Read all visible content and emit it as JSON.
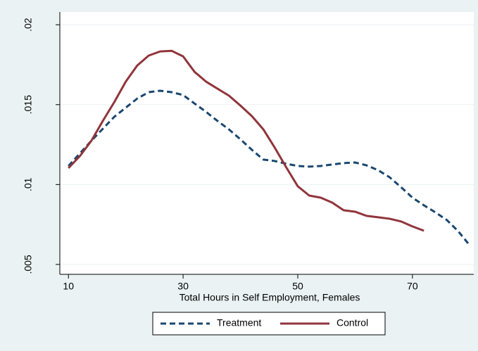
{
  "chart_data": {
    "type": "line",
    "x_label": "Total Hours in Self Employment, Females",
    "xlim": [
      8.5,
      80.7
    ],
    "xticks": [
      10,
      30,
      50,
      70
    ],
    "ylim": [
      0.00438,
      0.0208
    ],
    "yticks": [
      {
        "value": 0.005,
        "label": ".005"
      },
      {
        "value": 0.01,
        "label": ".01"
      },
      {
        "value": 0.015,
        "label": ".015"
      },
      {
        "value": 0.02,
        "label": ".02"
      }
    ],
    "grid": true,
    "legend": "bottom",
    "series": [
      {
        "name": "Treatment",
        "color": "#1a476f",
        "dash": true,
        "x": [
          10,
          12,
          14,
          16,
          18,
          20,
          22,
          24,
          26,
          28,
          30,
          32,
          34,
          36,
          38,
          40,
          42,
          44,
          46,
          48,
          50,
          52,
          54,
          56,
          58,
          60,
          62,
          64,
          66,
          68,
          70,
          72,
          74,
          76,
          78,
          80
        ],
        "values": [
          0.01116,
          0.01195,
          0.01274,
          0.01349,
          0.01424,
          0.01481,
          0.01538,
          0.01578,
          0.01587,
          0.01578,
          0.0156,
          0.01507,
          0.01455,
          0.01398,
          0.01345,
          0.01283,
          0.01217,
          0.01156,
          0.01147,
          0.0113,
          0.01116,
          0.01112,
          0.01116,
          0.01125,
          0.01134,
          0.01138,
          0.0112,
          0.0109,
          0.01046,
          0.00984,
          0.00918,
          0.0087,
          0.00826,
          0.00778,
          0.00707,
          0.00619
        ]
      },
      {
        "name": "Control",
        "color": "#90353b",
        "dash": false,
        "x": [
          10,
          12,
          14,
          16,
          18,
          20,
          22,
          24,
          26,
          28,
          30,
          32,
          34,
          36,
          38,
          40,
          42,
          44,
          46,
          48,
          50,
          52,
          54,
          56,
          58,
          60,
          62,
          64,
          66,
          68,
          70,
          72
        ],
        "values": [
          0.01103,
          0.01178,
          0.01274,
          0.01398,
          0.01516,
          0.01644,
          0.01745,
          0.01807,
          0.01833,
          0.01837,
          0.01802,
          0.01705,
          0.01644,
          0.016,
          0.01556,
          0.01494,
          0.01428,
          0.01345,
          0.0123,
          0.01107,
          0.00989,
          0.00931,
          0.00918,
          0.00887,
          0.00839,
          0.0083,
          0.00804,
          0.00795,
          0.00786,
          0.00769,
          0.00738,
          0.00711
        ]
      }
    ]
  }
}
